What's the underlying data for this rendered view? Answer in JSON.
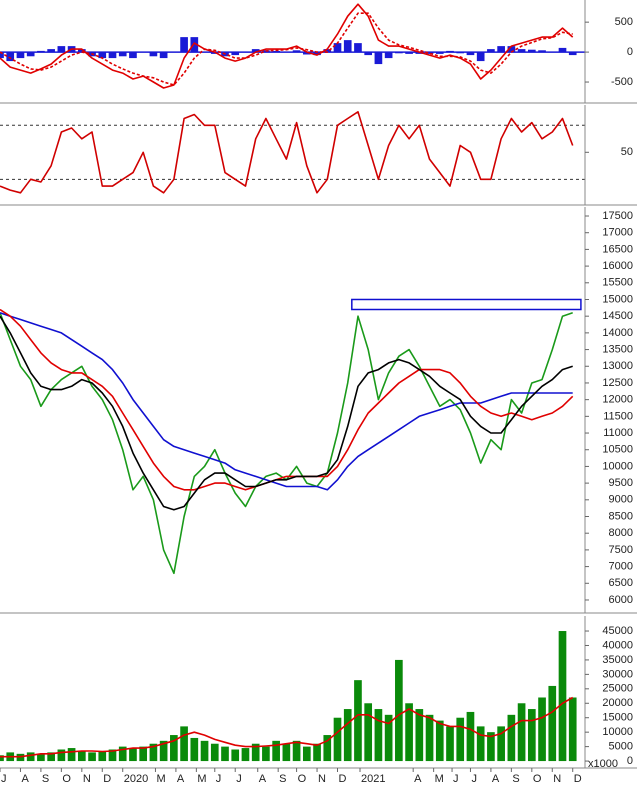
{
  "chart_data": [
    {
      "type": "macd",
      "x": [
        0,
        0.5,
        1,
        1.5,
        2,
        2.5,
        3,
        3.5,
        4,
        4.5,
        5,
        5.5,
        6,
        6.5,
        7,
        7.5,
        8,
        8.5,
        9,
        9.5,
        10,
        10.5,
        11,
        11.5,
        12,
        12.5,
        13,
        13.5,
        14,
        14.5,
        15,
        15.5,
        16,
        16.5,
        17,
        17.5,
        18,
        18.5,
        19,
        19.5,
        20,
        20.5,
        21,
        21.5,
        22,
        22.5,
        23,
        23.5,
        24,
        24.5,
        25,
        25.5,
        26,
        26.5,
        27,
        27.5,
        28
      ],
      "xlim": [
        0,
        28.6
      ],
      "ylim": [
        -850,
        870
      ],
      "yticks": [
        500,
        0,
        -500
      ],
      "zero_line": true,
      "series": [
        {
          "kind": "bar",
          "color": "#1a1ad6",
          "values": [
            -100,
            -150,
            -100,
            -70,
            20,
            50,
            100,
            100,
            50,
            -70,
            -100,
            -100,
            -70,
            -100,
            0,
            -70,
            -100,
            0,
            250,
            250,
            0,
            -30,
            -70,
            -50,
            0,
            50,
            30,
            20,
            10,
            30,
            -40,
            -50,
            50,
            150,
            200,
            150,
            -50,
            -200,
            -100,
            -20,
            -30,
            -30,
            -30,
            -30,
            20,
            -20,
            -50,
            -150,
            50,
            100,
            100,
            50,
            40,
            30,
            10,
            70,
            -50
          ]
        },
        {
          "kind": "line",
          "color": "#e00000",
          "values": [
            -100,
            -250,
            -300,
            -350,
            -280,
            -200,
            -50,
            50,
            50,
            -100,
            -200,
            -300,
            -350,
            -450,
            -400,
            -500,
            -600,
            -550,
            -100,
            150,
            50,
            0,
            -100,
            -150,
            -100,
            0,
            50,
            50,
            50,
            100,
            0,
            -50,
            50,
            300,
            600,
            800,
            600,
            200,
            100,
            100,
            50,
            0,
            -50,
            -100,
            -50,
            -100,
            -200,
            -450,
            -300,
            -100,
            100,
            150,
            200,
            250,
            250,
            400,
            250
          ]
        },
        {
          "kind": "line",
          "dash": true,
          "color": "#e00000",
          "values": [
            0,
            -100,
            -200,
            -280,
            -300,
            -250,
            -150,
            -50,
            0,
            -30,
            -100,
            -200,
            -280,
            -350,
            -400,
            -430,
            -500,
            -550,
            -350,
            -100,
            50,
            30,
            -30,
            -100,
            -100,
            -50,
            20,
            30,
            40,
            70,
            40,
            0,
            0,
            150,
            400,
            650,
            650,
            400,
            200,
            120,
            80,
            30,
            -20,
            -70,
            -70,
            -80,
            -150,
            -300,
            -350,
            -200,
            0,
            100,
            160,
            220,
            240,
            330,
            300
          ]
        }
      ]
    },
    {
      "type": "rsi",
      "x": [
        0,
        0.5,
        1,
        1.5,
        2,
        2.5,
        3,
        3.5,
        4,
        4.5,
        5,
        5.5,
        6,
        6.5,
        7,
        7.5,
        8,
        8.5,
        9,
        9.5,
        10,
        10.5,
        11,
        11.5,
        12,
        12.5,
        13,
        13.5,
        14,
        14.5,
        15,
        15.5,
        16,
        16.5,
        17,
        17.5,
        18,
        18.5,
        19,
        19.5,
        20,
        20.5,
        21,
        21.5,
        22,
        22.5,
        23,
        23.5,
        24,
        24.5,
        25,
        25.5,
        26,
        26.5,
        27,
        27.5,
        28
      ],
      "xlim": [
        0,
        28.6
      ],
      "ylim": [
        11,
        85
      ],
      "yticks": [
        50
      ],
      "reference_lines": [
        30,
        70
      ],
      "series": [
        {
          "kind": "line",
          "color": "#d00000",
          "values": [
            25,
            22,
            20,
            30,
            28,
            40,
            65,
            68,
            60,
            65,
            25,
            25,
            30,
            35,
            50,
            25,
            20,
            30,
            75,
            78,
            70,
            70,
            35,
            30,
            25,
            60,
            75,
            60,
            45,
            72,
            40,
            20,
            30,
            70,
            75,
            80,
            55,
            30,
            55,
            70,
            60,
            70,
            45,
            35,
            25,
            55,
            50,
            30,
            30,
            60,
            75,
            65,
            72,
            60,
            65,
            75,
            55
          ]
        }
      ]
    },
    {
      "type": "price",
      "x": [
        0,
        0.5,
        1,
        1.5,
        2,
        2.5,
        3,
        3.5,
        4,
        4.5,
        5,
        5.5,
        6,
        6.5,
        7,
        7.5,
        8,
        8.5,
        9,
        9.5,
        10,
        10.5,
        11,
        11.5,
        12,
        12.5,
        13,
        13.5,
        14,
        14.5,
        15,
        15.5,
        16,
        16.5,
        17,
        17.5,
        18,
        18.5,
        19,
        19.5,
        20,
        20.5,
        21,
        21.5,
        22,
        22.5,
        23,
        23.5,
        24,
        24.5,
        25,
        25.5,
        26,
        26.5,
        27,
        27.5,
        28
      ],
      "xlim": [
        0,
        28.6
      ],
      "ylim": [
        5610,
        17770
      ],
      "yticks": [
        6000,
        6500,
        7000,
        7500,
        8000,
        8500,
        9000,
        9500,
        10000,
        10500,
        11000,
        11500,
        12000,
        12500,
        13000,
        13500,
        14000,
        14500,
        15000,
        15500,
        16000,
        16500,
        17000,
        17500
      ],
      "box": {
        "x": [
          17.2,
          28.4
        ],
        "y": [
          14700,
          15000
        ],
        "color": "#1010d0"
      },
      "series": [
        {
          "kind": "line",
          "color": "#1a9a1a",
          "values": [
            14600,
            13800,
            13000,
            12600,
            11800,
            12300,
            12600,
            12800,
            13000,
            12400,
            12000,
            11400,
            10500,
            9300,
            9700,
            9000,
            7500,
            6800,
            8500,
            9700,
            10000,
            10500,
            9800,
            9200,
            8800,
            9400,
            9700,
            9800,
            9600,
            10000,
            9500,
            9400,
            9800,
            11000,
            12500,
            14500,
            13500,
            12000,
            12800,
            13300,
            13500,
            13000,
            12400,
            11800,
            12000,
            11700,
            11000,
            10100,
            10800,
            10500,
            12000,
            11600,
            12500,
            12600,
            13500,
            14500,
            14600
          ]
        },
        {
          "kind": "line",
          "color": "#1010d0",
          "values": [
            14600,
            14500,
            14400,
            14300,
            14200,
            14100,
            14000,
            13800,
            13600,
            13400,
            13200,
            12900,
            12500,
            12000,
            11600,
            11200,
            10800,
            10600,
            10500,
            10400,
            10300,
            10200,
            10100,
            9900,
            9800,
            9700,
            9600,
            9500,
            9400,
            9400,
            9400,
            9400,
            9300,
            9600,
            10000,
            10300,
            10500,
            10700,
            10900,
            11100,
            11300,
            11500,
            11600,
            11700,
            11800,
            11900,
            11900,
            11900,
            12000,
            12100,
            12200,
            12200,
            12200,
            12200,
            12200,
            12200,
            12200
          ]
        },
        {
          "kind": "line",
          "color": "#e00000",
          "values": [
            14700,
            14500,
            14200,
            13800,
            13400,
            13100,
            12900,
            12800,
            12800,
            12600,
            12400,
            12100,
            11600,
            11100,
            10600,
            10100,
            9700,
            9400,
            9300,
            9300,
            9400,
            9500,
            9500,
            9400,
            9300,
            9400,
            9500,
            9600,
            9700,
            9700,
            9700,
            9700,
            9700,
            10000,
            10500,
            11100,
            11600,
            11900,
            12200,
            12500,
            12700,
            12900,
            12900,
            12900,
            12800,
            12500,
            12100,
            11800,
            11600,
            11500,
            11600,
            11500,
            11400,
            11500,
            11600,
            11800,
            12100
          ]
        },
        {
          "kind": "line",
          "color": "#000000",
          "values": [
            14500,
            14000,
            13400,
            12800,
            12400,
            12300,
            12300,
            12400,
            12600,
            12500,
            12200,
            11800,
            11200,
            10400,
            9800,
            9300,
            8800,
            8700,
            8800,
            9200,
            9600,
            9800,
            9800,
            9600,
            9400,
            9400,
            9500,
            9600,
            9600,
            9700,
            9700,
            9700,
            9800,
            10200,
            11200,
            12400,
            12800,
            12900,
            13100,
            13200,
            13100,
            12900,
            12700,
            12400,
            12200,
            12000,
            11500,
            11200,
            11000,
            11000,
            11400,
            11800,
            12100,
            12400,
            12600,
            12900,
            13000
          ]
        }
      ]
    },
    {
      "type": "volume",
      "x": [
        0,
        0.5,
        1,
        1.5,
        2,
        2.5,
        3,
        3.5,
        4,
        4.5,
        5,
        5.5,
        6,
        6.5,
        7,
        7.5,
        8,
        8.5,
        9,
        9.5,
        10,
        10.5,
        11,
        11.5,
        12,
        12.5,
        13,
        13.5,
        14,
        14.5,
        15,
        15.5,
        16,
        16.5,
        17,
        17.5,
        18,
        18.5,
        19,
        19.5,
        20,
        20.5,
        21,
        21.5,
        22,
        22.5,
        23,
        23.5,
        24,
        24.5,
        25,
        25.5,
        26,
        26.5,
        27,
        27.5,
        28
      ],
      "xlim": [
        0,
        28.6
      ],
      "ylim": [
        -2400,
        50200
      ],
      "yticks": [
        0,
        5000,
        10000,
        15000,
        20000,
        25000,
        30000,
        35000,
        40000,
        45000
      ],
      "unit": "x1000",
      "xticks": [
        {
          "value": 0,
          "label": "J"
        },
        {
          "value": 1,
          "label": "A"
        },
        {
          "value": 2,
          "label": "S"
        },
        {
          "value": 3,
          "label": "O"
        },
        {
          "value": 4,
          "label": "N"
        },
        {
          "value": 5,
          "label": "D"
        },
        {
          "value": 6,
          "label": "2020"
        },
        {
          "value": 7.6,
          "label": "M"
        },
        {
          "value": 8.6,
          "label": "A"
        },
        {
          "value": 9.6,
          "label": "M"
        },
        {
          "value": 10.5,
          "label": "J"
        },
        {
          "value": 11.5,
          "label": "J"
        },
        {
          "value": 12.6,
          "label": "A"
        },
        {
          "value": 13.6,
          "label": "S"
        },
        {
          "value": 14.5,
          "label": "O"
        },
        {
          "value": 15.5,
          "label": "N"
        },
        {
          "value": 16.5,
          "label": "D"
        },
        {
          "value": 17.6,
          "label": "2021"
        },
        {
          "value": 20.2,
          "label": "A"
        },
        {
          "value": 21.2,
          "label": "M"
        },
        {
          "value": 22.1,
          "label": "J"
        },
        {
          "value": 23,
          "label": "J"
        },
        {
          "value": 24,
          "label": "A"
        },
        {
          "value": 25,
          "label": "S"
        },
        {
          "value": 26,
          "label": "O"
        },
        {
          "value": 27,
          "label": "N"
        },
        {
          "value": 28,
          "label": "D"
        }
      ],
      "series": [
        {
          "kind": "bar",
          "color": "#0a8a0a",
          "values": [
            2000,
            3000,
            2500,
            3000,
            2500,
            3000,
            4000,
            4500,
            3500,
            3000,
            3500,
            4000,
            5000,
            4500,
            5000,
            6000,
            7000,
            9000,
            12000,
            8000,
            7000,
            6000,
            5000,
            4000,
            4500,
            6000,
            5000,
            7000,
            6000,
            7000,
            5000,
            6000,
            9000,
            15000,
            18000,
            28000,
            20000,
            18000,
            16000,
            35000,
            20000,
            18000,
            16000,
            14000,
            12000,
            15000,
            17000,
            12000,
            10000,
            12000,
            16000,
            20000,
            18000,
            22000,
            26000,
            45000,
            22000
          ]
        },
        {
          "kind": "line",
          "color": "#e00000",
          "values": [
            1500,
            1500,
            1500,
            2000,
            2500,
            2500,
            3000,
            3200,
            3500,
            3500,
            3300,
            3500,
            4000,
            4500,
            4500,
            5000,
            6000,
            7000,
            9000,
            10000,
            9000,
            7500,
            6500,
            5500,
            5000,
            5000,
            5200,
            5500,
            6000,
            6500,
            6000,
            5500,
            7000,
            10000,
            13000,
            16000,
            16000,
            14000,
            13000,
            16000,
            18000,
            16000,
            15000,
            13000,
            12000,
            12000,
            11000,
            9000,
            8500,
            9500,
            12000,
            14000,
            14000,
            15000,
            17000,
            20000,
            22000
          ]
        }
      ]
    }
  ]
}
